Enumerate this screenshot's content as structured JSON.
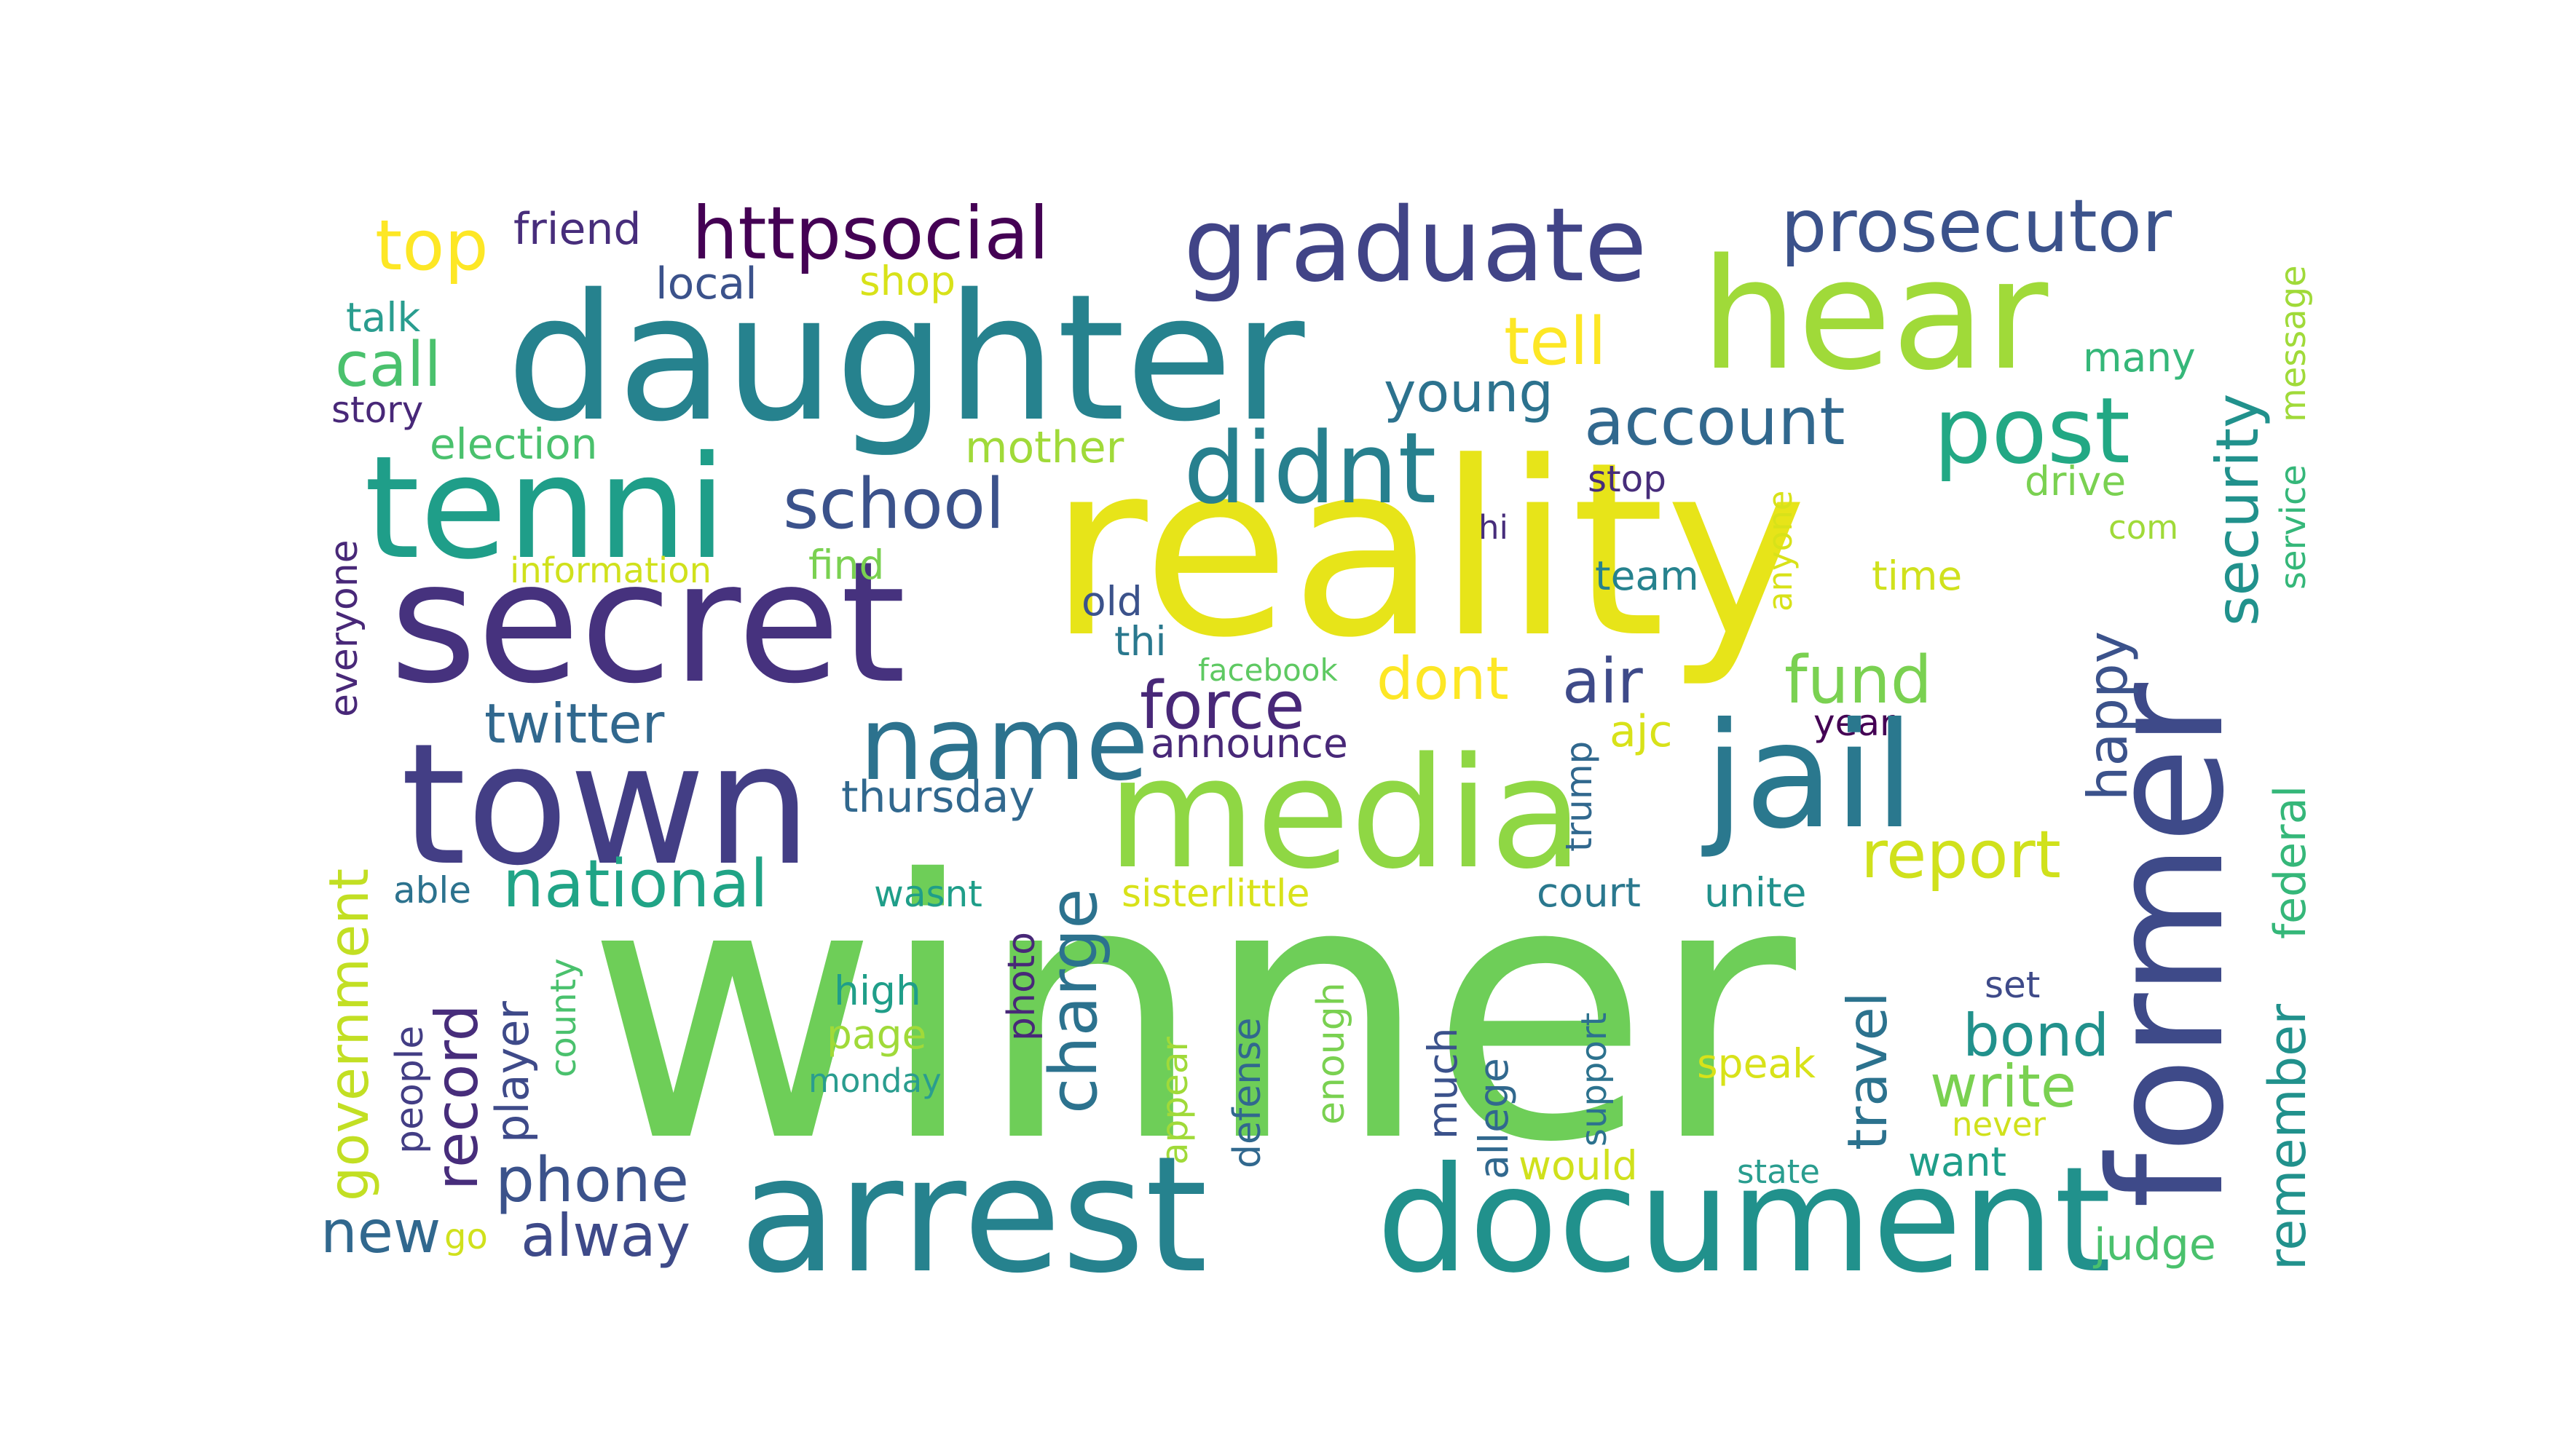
{
  "words": [
    {
      "text": "winner",
      "color": "#6ece58"
    },
    {
      "text": "reality",
      "color": "#e7e419"
    },
    {
      "text": "daughter",
      "color": "#26828e"
    },
    {
      "text": "hear",
      "color": "#a0da39"
    },
    {
      "text": "graduate",
      "color": "#414487"
    },
    {
      "text": "prosecutor",
      "color": "#3b528b"
    },
    {
      "text": "httpsocial",
      "color": "#440154"
    },
    {
      "text": "friend",
      "color": "#472d7b"
    },
    {
      "text": "top",
      "color": "#fde725"
    },
    {
      "text": "talk",
      "color": "#2a9d8f"
    },
    {
      "text": "local",
      "color": "#3b528b"
    },
    {
      "text": "shop",
      "color": "#d8e219"
    },
    {
      "text": "call",
      "color": "#4ac16d"
    },
    {
      "text": "story",
      "color": "#482878"
    },
    {
      "text": "tell",
      "color": "#fde725"
    },
    {
      "text": "young",
      "color": "#2c728e"
    },
    {
      "text": "many",
      "color": "#35b779"
    },
    {
      "text": "security",
      "color": "#21918c"
    },
    {
      "text": "message",
      "color": "#a0da39"
    },
    {
      "text": "tenni",
      "color": "#1f9e89"
    },
    {
      "text": "election",
      "color": "#4ac16d"
    },
    {
      "text": "didnt",
      "color": "#27808e"
    },
    {
      "text": "account",
      "color": "#31688e"
    },
    {
      "text": "post",
      "color": "#22a884"
    },
    {
      "text": "mother",
      "color": "#a0da39"
    },
    {
      "text": "school",
      "color": "#3b528b"
    },
    {
      "text": "stop",
      "color": "#472d7b"
    },
    {
      "text": "drive",
      "color": "#7ad151"
    },
    {
      "text": "service",
      "color": "#35b779"
    },
    {
      "text": "everyone",
      "color": "#482878"
    },
    {
      "text": "secret",
      "color": "#46327e"
    },
    {
      "text": "information",
      "color": "#d0e11c"
    },
    {
      "text": "find",
      "color": "#7ad151"
    },
    {
      "text": "hi",
      "color": "#472d7b"
    },
    {
      "text": "anyone",
      "color": "#d8e219"
    },
    {
      "text": "com",
      "color": "#a0da39"
    },
    {
      "text": "team",
      "color": "#26828e"
    },
    {
      "text": "time",
      "color": "#d0e11c"
    },
    {
      "text": "old",
      "color": "#3b528b"
    },
    {
      "text": "thi",
      "color": "#2a788e"
    },
    {
      "text": "former",
      "color": "#3e4a89"
    },
    {
      "text": "facebook",
      "color": "#5ec962"
    },
    {
      "text": "dont",
      "color": "#fde725"
    },
    {
      "text": "air",
      "color": "#3e4a89"
    },
    {
      "text": "fund",
      "color": "#7ad151"
    },
    {
      "text": "happy",
      "color": "#3b528b"
    },
    {
      "text": "town",
      "color": "#433e85"
    },
    {
      "text": "twitter",
      "color": "#31688e"
    },
    {
      "text": "name",
      "color": "#2c728e"
    },
    {
      "text": "force",
      "color": "#482878"
    },
    {
      "text": "ajc",
      "color": "#d8e219"
    },
    {
      "text": "year",
      "color": "#440154"
    },
    {
      "text": "media",
      "color": "#8fd744"
    },
    {
      "text": "jail",
      "color": "#2a788e"
    },
    {
      "text": "government",
      "color": "#c2df23"
    },
    {
      "text": "announce",
      "color": "#482878"
    },
    {
      "text": "thursday",
      "color": "#31688e"
    },
    {
      "text": "trump",
      "color": "#31688e"
    },
    {
      "text": "report",
      "color": "#d0e11c"
    },
    {
      "text": "federal",
      "color": "#35b779"
    },
    {
      "text": "remember",
      "color": "#21918c"
    },
    {
      "text": "national",
      "color": "#20a486"
    },
    {
      "text": "able",
      "color": "#2c728e"
    },
    {
      "text": "wasnt",
      "color": "#1f9e89"
    },
    {
      "text": "sisterlittle",
      "color": "#d8e219"
    },
    {
      "text": "court",
      "color": "#2a788e"
    },
    {
      "text": "unite",
      "color": "#21918c"
    },
    {
      "text": "record",
      "color": "#472d7b"
    },
    {
      "text": "charge",
      "color": "#2c728e"
    },
    {
      "text": "photo",
      "color": "#482878"
    },
    {
      "text": "people",
      "color": "#433e85"
    },
    {
      "text": "player",
      "color": "#3e4a89"
    },
    {
      "text": "county",
      "color": "#4ac16d"
    },
    {
      "text": "high",
      "color": "#1f9e89"
    },
    {
      "text": "page",
      "color": "#a0da39"
    },
    {
      "text": "monday",
      "color": "#2a9d8f"
    },
    {
      "text": "defense",
      "color": "#31688e"
    },
    {
      "text": "enough",
      "color": "#7ad151"
    },
    {
      "text": "appear",
      "color": "#a0da39"
    },
    {
      "text": "much",
      "color": "#3b528b"
    },
    {
      "text": "allege",
      "color": "#31688e"
    },
    {
      "text": "support",
      "color": "#2c728e"
    },
    {
      "text": "travel",
      "color": "#2c728e"
    },
    {
      "text": "set",
      "color": "#3e4a89"
    },
    {
      "text": "bond",
      "color": "#21918c"
    },
    {
      "text": "speak",
      "color": "#d8e219"
    },
    {
      "text": "write",
      "color": "#7ad151"
    },
    {
      "text": "never",
      "color": "#d0e11c"
    },
    {
      "text": "phone",
      "color": "#3b528b"
    },
    {
      "text": "new",
      "color": "#31688e"
    },
    {
      "text": "go",
      "color": "#d0e11c"
    },
    {
      "text": "alway",
      "color": "#3e4a89"
    },
    {
      "text": "arrest",
      "color": "#26828e"
    },
    {
      "text": "document",
      "color": "#21918c"
    },
    {
      "text": "would",
      "color": "#d0e11c"
    },
    {
      "text": "state",
      "color": "#2a9d8f"
    },
    {
      "text": "want",
      "color": "#1f9e89"
    },
    {
      "text": "judge",
      "color": "#4ac16d"
    }
  ]
}
